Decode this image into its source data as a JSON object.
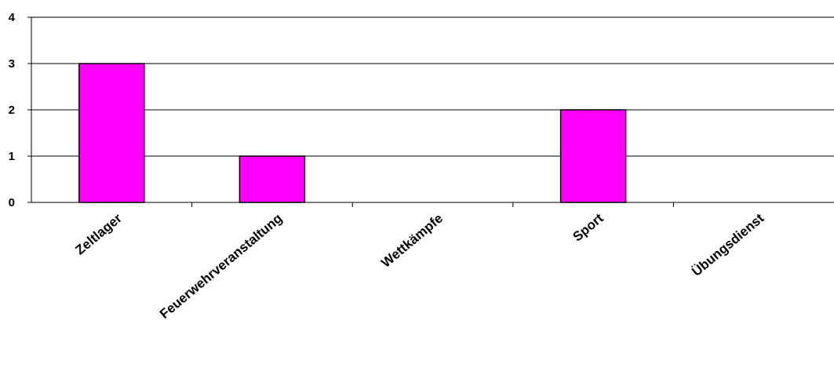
{
  "chart_data": {
    "type": "bar",
    "categories": [
      "Zeltlager",
      "Feuerwehrveranstaltung",
      "Wettkämpfe",
      "Sport",
      "Übungsdienst"
    ],
    "values": [
      3,
      1,
      0,
      2,
      0
    ],
    "yticks": [
      "0",
      "1",
      "2",
      "3",
      "4"
    ],
    "ylim": [
      0,
      4
    ],
    "grid": true,
    "legend": "none",
    "colors": {
      "bar": "#ff00ff",
      "bar_outline": "#000000",
      "grid": "#000000"
    }
  }
}
